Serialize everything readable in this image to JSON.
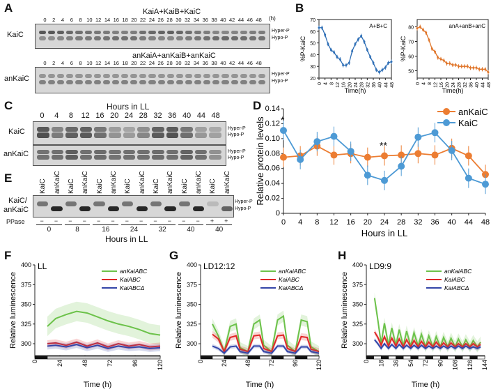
{
  "figure": {
    "panel_labels": {
      "A": "A",
      "B": "B",
      "C": "C",
      "D": "D",
      "E": "E",
      "F": "F",
      "G": "G",
      "H": "H"
    },
    "units_h": "(h)",
    "hyper_p": "Hyper-P",
    "hypo_p": "Hypo-P",
    "kaic": "KaiC",
    "ankaic": "anKaiC",
    "kaic_ankaic_1": "KaiC/",
    "kaic_ankaic_2": "anKaiC",
    "hours_in_ll": "Hours in LL",
    "ppase": "PPase"
  },
  "panelA": {
    "gel1_title": "KaiA+KaiB+KaiC",
    "gel2_title": "anKaiA+anKaiB+anKaiC",
    "row1_label": "KaiC",
    "row2_label": "anKaiC",
    "timepoints": [
      "0",
      "2",
      "4",
      "6",
      "8",
      "10",
      "12",
      "14",
      "16",
      "18",
      "20",
      "22",
      "24",
      "26",
      "28",
      "30",
      "32",
      "34",
      "36",
      "38",
      "40",
      "42",
      "44",
      "46",
      "48"
    ]
  },
  "panelC": {
    "timepoints": [
      "0",
      "4",
      "8",
      "12",
      "16",
      "20",
      "24",
      "28",
      "32",
      "36",
      "40",
      "44",
      "48"
    ]
  },
  "panelE": {
    "lanes": [
      "KaiC",
      "anKaiC",
      "KaiC",
      "anKaiC",
      "KaiC",
      "anKaiC",
      "KaiC",
      "anKaiC",
      "KaiC",
      "anKaiC",
      "KaiC",
      "anKaiC",
      "KaiC",
      "anKaiC"
    ],
    "ppase_marks": [
      "−",
      "−",
      "−",
      "−",
      "−",
      "−",
      "−",
      "−",
      "−",
      "−",
      "−",
      "−",
      "+",
      "+"
    ],
    "time_labels": [
      "0",
      "8",
      "16",
      "24",
      "32",
      "40",
      "40"
    ]
  },
  "chart_data": [
    {
      "id": "B-left",
      "type": "line",
      "title": "A+B+C",
      "xlabel": "Time(h)",
      "ylabel": "%P-KaiC",
      "xlim": [
        0,
        48
      ],
      "ylim": [
        20,
        70
      ],
      "xticks": [
        0,
        4,
        8,
        12,
        16,
        20,
        24,
        28,
        32,
        36,
        40,
        44,
        48
      ],
      "yticks": [
        20,
        30,
        40,
        50,
        60,
        70
      ],
      "series": [
        {
          "name": "A+B+C",
          "color": "#2f6fb6",
          "x": [
            0,
            2,
            4,
            6,
            8,
            10,
            12,
            14,
            16,
            18,
            20,
            22,
            24,
            26,
            28,
            30,
            32,
            34,
            36,
            38,
            40,
            42,
            44,
            46,
            48
          ],
          "y": [
            63,
            63,
            57,
            49,
            44,
            42,
            38,
            36,
            31,
            31,
            33,
            43,
            49,
            53,
            56,
            51,
            44,
            38,
            33,
            27,
            25,
            27,
            29,
            33,
            34
          ]
        }
      ]
    },
    {
      "id": "B-right",
      "type": "line",
      "title": "anA+anB+anC",
      "xlabel": "Time(h)",
      "ylabel": "%P-KaiC",
      "xlim": [
        0,
        48
      ],
      "ylim": [
        45,
        85
      ],
      "xticks": [
        0,
        4,
        8,
        12,
        16,
        20,
        24,
        28,
        32,
        36,
        40,
        44,
        48
      ],
      "yticks": [
        50,
        60,
        70,
        80
      ],
      "series": [
        {
          "name": "anA+anB+anC",
          "color": "#e0762b",
          "x": [
            0,
            2,
            4,
            6,
            8,
            10,
            12,
            14,
            16,
            18,
            20,
            22,
            24,
            26,
            28,
            30,
            32,
            34,
            36,
            38,
            40,
            42,
            44,
            46,
            48
          ],
          "y": [
            79,
            80,
            78,
            76,
            71,
            65,
            63,
            59,
            58,
            57,
            55,
            55,
            54,
            54,
            53,
            53,
            53,
            53,
            52,
            52,
            52,
            51,
            51,
            51,
            49
          ]
        }
      ]
    },
    {
      "id": "D",
      "type": "line",
      "title": "",
      "xlabel": "Hours in LL",
      "ylabel": "Relative protein levels",
      "xlim": [
        0,
        48
      ],
      "ylim": [
        0,
        0.14
      ],
      "xticks": [
        0,
        4,
        8,
        12,
        16,
        20,
        24,
        28,
        32,
        36,
        40,
        44,
        48
      ],
      "yticks": [
        0,
        0.02,
        0.04,
        0.06,
        0.08,
        0.1,
        0.12,
        0.14
      ],
      "annotations": [
        "*",
        "**"
      ],
      "series": [
        {
          "name": "anKaiC",
          "color": "#ec7d32",
          "x": [
            0,
            4,
            8,
            12,
            16,
            20,
            24,
            28,
            32,
            36,
            40,
            44,
            48
          ],
          "y": [
            0.075,
            0.077,
            0.09,
            0.078,
            0.08,
            0.075,
            0.077,
            0.078,
            0.08,
            0.078,
            0.087,
            0.077,
            0.052
          ]
        },
        {
          "name": "KaiC",
          "color": "#4d9ad5",
          "x": [
            0,
            4,
            8,
            12,
            16,
            20,
            24,
            28,
            32,
            36,
            40,
            44,
            48
          ],
          "y": [
            0.111,
            0.072,
            0.096,
            0.103,
            0.083,
            0.051,
            0.044,
            0.063,
            0.102,
            0.108,
            0.084,
            0.047,
            0.039
          ]
        }
      ]
    },
    {
      "id": "F",
      "type": "line",
      "title": "LL",
      "xlabel": "Time (h)",
      "ylabel": "Relative luminescence",
      "xlim": [
        0,
        120
      ],
      "ylim": [
        285,
        400
      ],
      "xticks": [
        0,
        24,
        48,
        72,
        96,
        120
      ],
      "yticks": [
        300,
        325,
        350,
        375,
        400
      ],
      "series": [
        {
          "name": "anKaiABC",
          "color": "#6cc24a",
          "x": [
            12,
            20,
            30,
            40,
            50,
            60,
            70,
            80,
            90,
            100,
            110,
            120
          ],
          "y": [
            322,
            332,
            337,
            341,
            339,
            334,
            329,
            325,
            322,
            318,
            313,
            311
          ]
        },
        {
          "name": "KaiABC",
          "color": "#e02828",
          "x": [
            12,
            20,
            30,
            40,
            50,
            60,
            70,
            80,
            90,
            100,
            110,
            120
          ],
          "y": [
            300,
            301,
            298,
            302,
            297,
            301,
            296,
            300,
            297,
            299,
            296,
            297
          ]
        },
        {
          "name": "KaiABCΔ",
          "color": "#3345a8",
          "x": [
            12,
            20,
            30,
            40,
            50,
            60,
            70,
            80,
            90,
            100,
            110,
            120
          ],
          "y": [
            297,
            298,
            296,
            299,
            295,
            298,
            294,
            297,
            295,
            296,
            294,
            295
          ]
        }
      ]
    },
    {
      "id": "G",
      "type": "line",
      "title": "LD12:12",
      "xlabel": "Time (h)",
      "ylabel": "Relative luminescence",
      "xlim": [
        0,
        120
      ],
      "ylim": [
        285,
        400
      ],
      "xticks": [
        0,
        24,
        48,
        72,
        96,
        120
      ],
      "yticks": [
        300,
        325,
        350,
        375,
        400
      ],
      "series": [
        {
          "name": "anKaiABC",
          "color": "#6cc24a",
          "x": [
            12,
            18,
            24,
            30,
            36,
            40,
            48,
            54,
            60,
            64,
            72,
            78,
            84,
            88,
            96,
            102,
            108,
            112,
            120
          ],
          "y": [
            325,
            310,
            290,
            322,
            325,
            295,
            290,
            325,
            330,
            298,
            290,
            330,
            335,
            298,
            290,
            330,
            328,
            296,
            290
          ]
        },
        {
          "name": "KaiABC",
          "color": "#e02828",
          "x": [
            12,
            18,
            24,
            30,
            36,
            40,
            48,
            54,
            60,
            64,
            72,
            78,
            84,
            88,
            96,
            102,
            108,
            112,
            120
          ],
          "y": [
            312,
            306,
            290,
            308,
            310,
            293,
            290,
            310,
            311,
            294,
            290,
            310,
            311,
            294,
            290,
            309,
            308,
            293,
            290
          ]
        },
        {
          "name": "KaiABCΔ",
          "color": "#3345a8",
          "x": [
            12,
            18,
            24,
            30,
            36,
            40,
            48,
            54,
            60,
            64,
            72,
            78,
            84,
            88,
            96,
            102,
            108,
            112,
            120
          ],
          "y": [
            297,
            294,
            288,
            296,
            297,
            290,
            288,
            297,
            297,
            290,
            288,
            297,
            297,
            290,
            288,
            296,
            296,
            290,
            288
          ]
        }
      ]
    },
    {
      "id": "H",
      "type": "line",
      "title": "LD9:9",
      "xlabel": "Time (h)",
      "ylabel": "Relative luminescence",
      "xlim": [
        0,
        144
      ],
      "ylim": [
        285,
        400
      ],
      "xticks": [
        0,
        18,
        36,
        54,
        72,
        90,
        108,
        126,
        144
      ],
      "yticks": [
        300,
        325,
        350,
        375,
        400
      ],
      "series": [
        {
          "name": "anKaiABC",
          "color": "#6cc24a",
          "x": [
            10,
            14,
            18,
            22,
            27,
            31,
            36,
            40,
            45,
            49,
            54,
            58,
            63,
            67,
            72,
            76,
            81,
            85,
            90,
            94,
            99,
            103,
            108,
            112,
            117,
            121,
            126,
            130,
            135,
            139
          ],
          "y": [
            358,
            330,
            300,
            326,
            298,
            320,
            298,
            318,
            297,
            316,
            297,
            314,
            297,
            312,
            296,
            310,
            296,
            309,
            296,
            308,
            296,
            307,
            296,
            306,
            296,
            305,
            296,
            304,
            296,
            302
          ]
        },
        {
          "name": "KaiABC",
          "color": "#e02828",
          "x": [
            10,
            14,
            18,
            22,
            27,
            31,
            36,
            40,
            45,
            49,
            54,
            58,
            63,
            67,
            72,
            76,
            81,
            85,
            90,
            94,
            99,
            103,
            108,
            112,
            117,
            121,
            126,
            130,
            135,
            139
          ],
          "y": [
            315,
            308,
            298,
            309,
            297,
            307,
            297,
            306,
            296,
            305,
            296,
            304,
            296,
            303,
            296,
            302,
            296,
            302,
            296,
            301,
            296,
            301,
            296,
            300,
            296,
            300,
            296,
            300,
            296,
            299
          ]
        },
        {
          "name": "KaiABCΔ",
          "color": "#3345a8",
          "x": [
            10,
            14,
            18,
            22,
            27,
            31,
            36,
            40,
            45,
            49,
            54,
            58,
            63,
            67,
            72,
            76,
            81,
            85,
            90,
            94,
            99,
            103,
            108,
            112,
            117,
            121,
            126,
            130,
            135,
            139
          ],
          "y": [
            305,
            300,
            294,
            300,
            294,
            299,
            294,
            299,
            294,
            298,
            294,
            298,
            294,
            298,
            294,
            297,
            294,
            297,
            294,
            297,
            294,
            297,
            294,
            297,
            294,
            297,
            294,
            296,
            294,
            296
          ]
        }
      ]
    }
  ],
  "legend_lux": {
    "an": "anKaiABC",
    "wt": "KaiABC",
    "delta": "KaiABCΔ"
  },
  "legend_D": {
    "an": "anKaiC",
    "wt": "KaiC"
  }
}
